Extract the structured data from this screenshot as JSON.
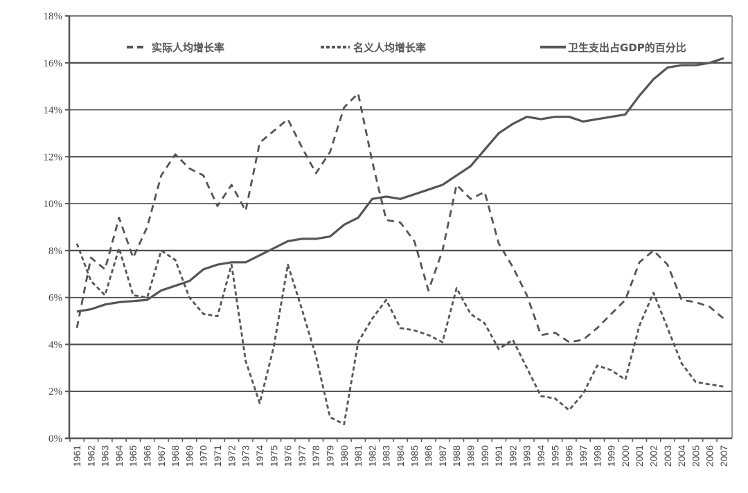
{
  "chart_data": {
    "type": "line",
    "title": "",
    "xlabel": "",
    "ylabel": "",
    "ylim": [
      0,
      18
    ],
    "yticks": [
      0,
      2,
      4,
      6,
      8,
      10,
      12,
      14,
      16,
      18
    ],
    "ytick_labels": [
      "0%",
      "2%",
      "4%",
      "6%",
      "8%",
      "10%",
      "12%",
      "14%",
      "16%",
      "18%"
    ],
    "grid": "horizontal",
    "legend_position": "top-inside",
    "x": [
      1961,
      1962,
      1963,
      1964,
      1965,
      1966,
      1967,
      1968,
      1969,
      1970,
      1971,
      1972,
      1973,
      1974,
      1975,
      1976,
      1977,
      1978,
      1979,
      1980,
      1981,
      1982,
      1983,
      1984,
      1985,
      1986,
      1987,
      1988,
      1989,
      1990,
      1991,
      1992,
      1993,
      1994,
      1995,
      1996,
      1997,
      1998,
      1999,
      2000,
      2001,
      2002,
      2003,
      2004,
      2005,
      2006,
      2007
    ],
    "series": [
      {
        "name": "实际人均增长率",
        "style": "long-dash",
        "values": [
          4.7,
          7.7,
          7.2,
          9.4,
          7.7,
          9.0,
          11.2,
          12.1,
          11.5,
          11.2,
          9.9,
          10.8,
          9.7,
          12.6,
          13.1,
          13.6,
          12.4,
          11.3,
          12.2,
          14.1,
          14.7,
          11.8,
          9.3,
          9.2,
          8.4,
          6.3,
          8.0,
          10.8,
          10.2,
          10.5,
          8.3,
          7.3,
          6.1,
          4.4,
          4.5,
          4.1,
          4.2,
          4.7,
          5.3,
          5.9,
          7.5,
          8.0,
          7.4,
          5.9,
          5.8,
          5.6,
          5.1
        ]
      },
      {
        "name": "名义人均增长率",
        "style": "short-dash",
        "values": [
          8.3,
          6.7,
          6.1,
          8.1,
          6.1,
          6.0,
          8.0,
          7.6,
          6.0,
          5.3,
          5.2,
          7.4,
          3.3,
          1.5,
          3.9,
          7.4,
          5.5,
          3.5,
          0.9,
          0.6,
          4.1,
          5.1,
          5.9,
          4.7,
          4.6,
          4.4,
          4.1,
          6.4,
          5.3,
          4.9,
          3.8,
          4.2,
          3.0,
          1.8,
          1.7,
          1.2,
          1.9,
          3.1,
          2.9,
          2.5,
          4.8,
          6.2,
          4.7,
          3.2,
          2.4,
          2.3,
          2.2
        ]
      },
      {
        "name": "卫生支出占GDP的百分比",
        "style": "solid",
        "values": [
          5.4,
          5.5,
          5.7,
          5.8,
          5.85,
          5.9,
          6.3,
          6.5,
          6.7,
          7.2,
          7.4,
          7.5,
          7.5,
          7.8,
          8.1,
          8.4,
          8.5,
          8.5,
          8.6,
          9.1,
          9.4,
          10.2,
          10.3,
          10.2,
          10.4,
          10.6,
          10.8,
          11.2,
          11.6,
          12.3,
          13.0,
          13.4,
          13.7,
          13.6,
          13.7,
          13.7,
          13.5,
          13.6,
          13.7,
          13.8,
          14.6,
          15.3,
          15.8,
          15.9,
          15.9,
          16.0,
          16.2
        ]
      }
    ]
  },
  "legend": {
    "items": [
      {
        "label": "实际人均增长率",
        "dash": "long-dash"
      },
      {
        "label": "名义人均增长率",
        "dash": "short-dash"
      },
      {
        "label": "卫生支出占GDP的百分比",
        "dash": "solid"
      }
    ]
  },
  "colors": {
    "line": "#555555",
    "grid": "#4a4a4a",
    "axis": "#555555",
    "background": "#ffffff"
  }
}
